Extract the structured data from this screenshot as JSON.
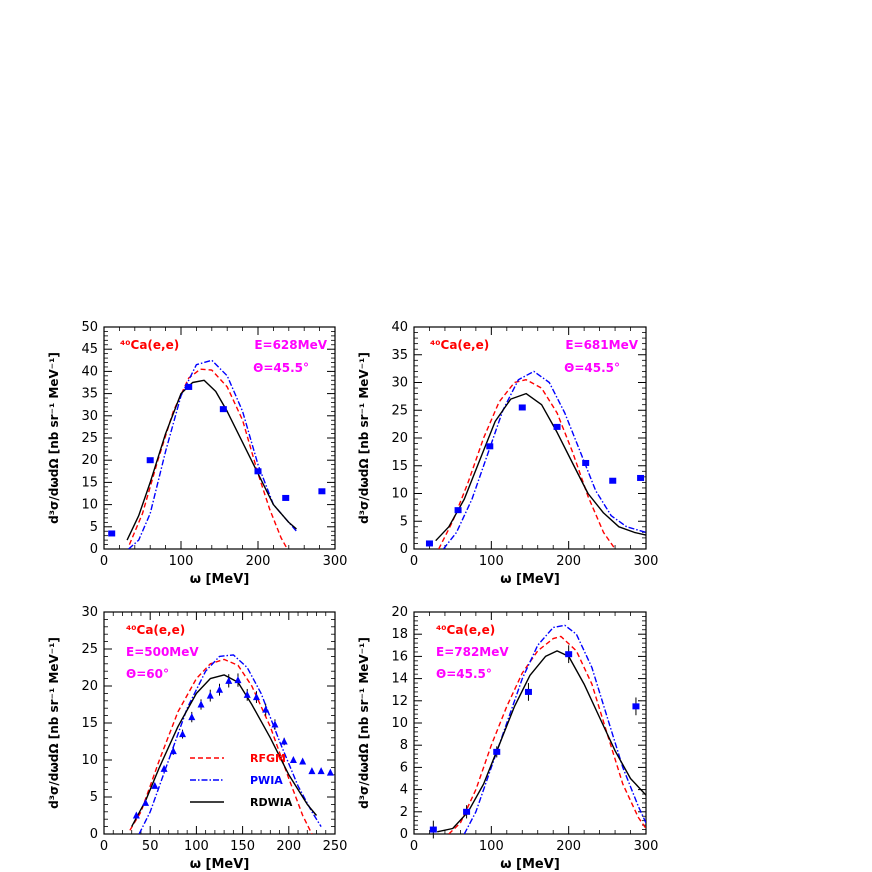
{
  "colors": {
    "rfgm": "#ff0000",
    "pwia": "#0000ff",
    "rdwia": "#000000",
    "data": "#0000ff",
    "annot": "#ff00ff"
  },
  "chart_data": [
    {
      "type": "line",
      "title": "",
      "xlabel": "ω [MeV]",
      "ylabel": "d³σ/dωdΩ [nb sr⁻¹ MeV⁻¹]",
      "xlim": [
        0,
        300
      ],
      "ylim": [
        0,
        50
      ],
      "xticks": [
        0,
        100,
        200,
        300
      ],
      "yticks": [
        0,
        5,
        10,
        15,
        20,
        25,
        30,
        35,
        40,
        45,
        50
      ],
      "annotations": [
        {
          "text": "⁴⁰Ca(e,e)",
          "color": "red"
        },
        {
          "text": "E=628MeV",
          "color": "magenta"
        },
        {
          "text": "Θ=45.5°",
          "color": "magenta"
        }
      ],
      "series": [
        {
          "name": "RFGM",
          "style": "dashed",
          "color": "red",
          "x": [
            33,
            50,
            70,
            90,
            110,
            125,
            140,
            160,
            180,
            200,
            215,
            230,
            238
          ],
          "y": [
            1,
            8,
            20,
            31,
            38.5,
            40.5,
            40.3,
            36.5,
            29,
            17,
            9,
            2.5,
            0
          ]
        },
        {
          "name": "PWIA",
          "style": "dashdot",
          "color": "blue",
          "x": [
            32,
            45,
            60,
            80,
            100,
            120,
            140,
            160,
            180,
            200,
            220,
            240,
            250
          ],
          "y": [
            0,
            2,
            8,
            22,
            34.5,
            41.5,
            42.5,
            39,
            31,
            19,
            10,
            6,
            4
          ]
        },
        {
          "name": "RDWIA",
          "style": "solid",
          "color": "black",
          "x": [
            30,
            45,
            60,
            80,
            100,
            115,
            130,
            145,
            160,
            180,
            200,
            220,
            240,
            250
          ],
          "y": [
            2,
            7.5,
            15,
            26,
            35,
            37.5,
            38,
            35.5,
            31,
            24,
            17,
            10,
            6,
            4.5
          ]
        }
      ],
      "data_points": {
        "style": "square",
        "x": [
          10,
          60,
          110,
          155,
          200,
          236,
          283
        ],
        "y": [
          3.5,
          20,
          36.5,
          31.5,
          17.5,
          11.5,
          13
        ],
        "err": [
          0.3,
          0.3,
          0.3,
          0.3,
          0.3,
          0.3,
          0.3
        ]
      }
    },
    {
      "type": "line",
      "title": "",
      "xlabel": "ω [MeV]",
      "ylabel": "d³σ/dωdΩ [nb sr⁻¹ MeV⁻¹]",
      "xlim": [
        0,
        300
      ],
      "ylim": [
        0,
        40
      ],
      "xticks": [
        0,
        100,
        200,
        300
      ],
      "yticks": [
        0,
        5,
        10,
        15,
        20,
        25,
        30,
        35,
        40
      ],
      "annotations": [
        {
          "text": "⁴⁰Ca(e,e)",
          "color": "red"
        },
        {
          "text": "E=681MeV",
          "color": "magenta"
        },
        {
          "text": "Θ=45.5°",
          "color": "magenta"
        }
      ],
      "series": [
        {
          "name": "RFGM",
          "style": "dashed",
          "color": "red",
          "x": [
            32,
            50,
            70,
            90,
            110,
            130,
            145,
            165,
            185,
            205,
            225,
            245,
            260
          ],
          "y": [
            0,
            5,
            12,
            20,
            26.5,
            30,
            30.5,
            29,
            24.5,
            17.5,
            9.5,
            3,
            0
          ]
        },
        {
          "name": "PWIA",
          "style": "dashdot",
          "color": "blue",
          "x": [
            38,
            55,
            75,
            95,
            115,
            135,
            155,
            175,
            195,
            215,
            235,
            255,
            275,
            300
          ],
          "y": [
            0,
            3,
            9,
            17,
            25,
            30.5,
            32,
            30,
            24.5,
            17.5,
            10.5,
            6,
            4,
            3
          ]
        },
        {
          "name": "RDWIA",
          "style": "solid",
          "color": "black",
          "x": [
            28,
            45,
            65,
            85,
            105,
            125,
            145,
            165,
            185,
            205,
            225,
            245,
            265,
            285,
            300
          ],
          "y": [
            1.5,
            4,
            9,
            16,
            23,
            27,
            28,
            26,
            21,
            15.5,
            10,
            6.5,
            4,
            3,
            2.5
          ]
        }
      ],
      "data_points": {
        "style": "square",
        "x": [
          20,
          57,
          98,
          140,
          185,
          222,
          257,
          293
        ],
        "y": [
          1,
          7,
          18.5,
          25.5,
          22,
          15.5,
          12.3,
          12.8
        ],
        "err": [
          0.3,
          0.3,
          0.3,
          0.3,
          0.3,
          0.3,
          0.3,
          0.3
        ]
      }
    },
    {
      "type": "line",
      "title": "",
      "xlabel": "ω [MeV]",
      "ylabel": "d³σ/dωdΩ [nb sr⁻¹ MeV⁻¹]",
      "xlim": [
        0,
        250
      ],
      "ylim": [
        0,
        30
      ],
      "xticks": [
        0,
        50,
        100,
        150,
        200,
        250
      ],
      "yticks": [
        0,
        5,
        10,
        15,
        20,
        25,
        30
      ],
      "annotations": [
        {
          "text": "⁴⁰Ca(e,e)",
          "color": "red"
        },
        {
          "text": "E=500MeV",
          "color": "magenta"
        },
        {
          "text": "Θ=60°",
          "color": "magenta"
        }
      ],
      "legend": {
        "placement": "lower-left",
        "entries": [
          "RFGM",
          "PWIA",
          "RDWIA"
        ]
      },
      "series": [
        {
          "name": "RFGM",
          "style": "dashed",
          "color": "red",
          "x": [
            28,
            40,
            60,
            80,
            100,
            115,
            130,
            145,
            160,
            180,
            200,
            215,
            225
          ],
          "y": [
            0.5,
            3,
            10,
            16.5,
            21,
            23,
            23.6,
            22.8,
            20,
            14.5,
            7.5,
            2.5,
            0
          ]
        },
        {
          "name": "PWIA",
          "style": "dashdot",
          "color": "blue",
          "x": [
            38,
            50,
            70,
            90,
            110,
            125,
            140,
            155,
            170,
            190,
            210,
            225,
            235
          ],
          "y": [
            0,
            3,
            10,
            17,
            22,
            24,
            24.2,
            22.5,
            19,
            12.5,
            6.5,
            3,
            1
          ]
        },
        {
          "name": "RDWIA",
          "style": "solid",
          "color": "black",
          "x": [
            30,
            45,
            60,
            80,
            100,
            115,
            130,
            145,
            160,
            180,
            200,
            220,
            230
          ],
          "y": [
            1,
            4.5,
            9,
            14.5,
            19,
            21,
            21.5,
            20.5,
            17.5,
            13,
            8,
            4,
            2.5
          ]
        }
      ],
      "data_points": {
        "style": "triangle",
        "x": [
          35,
          45,
          55,
          65,
          75,
          85,
          95,
          105,
          115,
          125,
          135,
          145,
          155,
          165,
          175,
          185,
          195,
          205,
          215,
          225,
          235,
          245
        ],
        "y": [
          2.5,
          4.2,
          6.5,
          8.8,
          11.2,
          13.5,
          15.8,
          17.5,
          18.7,
          19.5,
          20.7,
          20.8,
          18.8,
          18.5,
          16.8,
          14.8,
          12.5,
          10,
          9.8,
          8.5,
          8.5,
          8.3
        ],
        "err": [
          0.2,
          0.2,
          0.3,
          0.4,
          0.5,
          0.6,
          0.7,
          0.7,
          0.8,
          0.8,
          0.9,
          0.9,
          0.8,
          0.8,
          0.8,
          0.7,
          0.5,
          0.4,
          0.3,
          0.3,
          0.3,
          0.3
        ]
      }
    },
    {
      "type": "line",
      "title": "",
      "xlabel": "ω [MeV]",
      "ylabel": "d³σ/dωdΩ [nb sr⁻¹ MeV⁻¹]",
      "xlim": [
        0,
        300
      ],
      "ylim": [
        0,
        20
      ],
      "xticks": [
        0,
        100,
        200,
        300
      ],
      "yticks": [
        0,
        2,
        4,
        6,
        8,
        10,
        12,
        14,
        16,
        18,
        20
      ],
      "annotations": [
        {
          "text": "⁴⁰Ca(e,e)",
          "color": "red"
        },
        {
          "text": "E=782MeV",
          "color": "magenta"
        },
        {
          "text": "Θ=45.5°",
          "color": "magenta"
        }
      ],
      "series": [
        {
          "name": "RFGM",
          "style": "dashed",
          "color": "red",
          "x": [
            45,
            60,
            80,
            100,
            120,
            140,
            160,
            180,
            190,
            210,
            230,
            250,
            270,
            290,
            300
          ],
          "y": [
            0,
            1,
            4,
            8,
            11.5,
            14.5,
            16.5,
            17.6,
            17.8,
            16.5,
            13.5,
            9,
            4.5,
            1.5,
            0.5
          ]
        },
        {
          "name": "PWIA",
          "style": "dashdot",
          "color": "blue",
          "x": [
            65,
            80,
            100,
            120,
            140,
            160,
            180,
            195,
            210,
            230,
            250,
            270,
            290,
            300
          ],
          "y": [
            0,
            2,
            6,
            10,
            14,
            17,
            18.6,
            18.8,
            18,
            15,
            10.5,
            6,
            2.5,
            1
          ]
        },
        {
          "name": "RDWIA",
          "style": "solid",
          "color": "black",
          "x": [
            30,
            50,
            70,
            90,
            110,
            130,
            150,
            170,
            185,
            200,
            220,
            240,
            260,
            280,
            300
          ],
          "y": [
            0.2,
            0.5,
            2,
            4.5,
            8,
            11.5,
            14.3,
            16,
            16.5,
            16,
            13.5,
            10.5,
            7.5,
            5,
            3.5
          ]
        }
      ],
      "data_points": {
        "style": "square",
        "x": [
          25,
          68,
          107,
          148,
          200,
          287
        ],
        "y": [
          0.4,
          2,
          7.4,
          12.8,
          16.2,
          11.5
        ],
        "err": [
          0.8,
          0.6,
          0.5,
          0.8,
          0.8,
          0.8
        ]
      }
    }
  ]
}
